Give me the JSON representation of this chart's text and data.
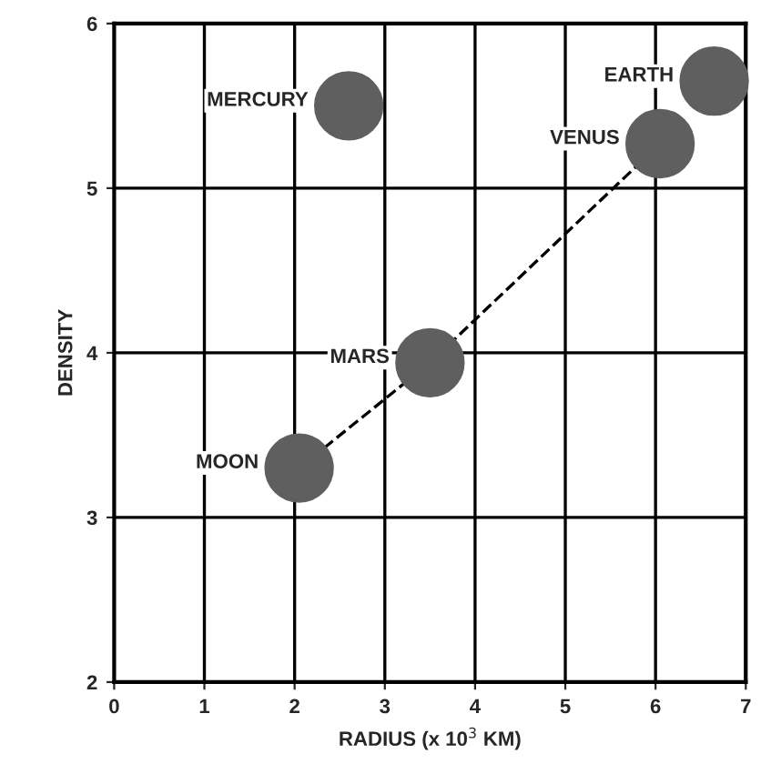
{
  "chart_data": {
    "type": "scatter",
    "xlabel": "RADIUS (x 10$^{3}$ KM)",
    "ylabel": "DENSITY",
    "xlim": [
      0,
      7
    ],
    "ylim": [
      2,
      6
    ],
    "xticks": [
      0,
      1,
      2,
      3,
      4,
      5,
      6,
      7
    ],
    "yticks": [
      2,
      3,
      4,
      5,
      6
    ],
    "grid": true,
    "series": [
      {
        "type": "scatter",
        "marker": "circle",
        "color": "#5f5f5f",
        "x": [
          2.6,
          6.65,
          6.05,
          3.5,
          2.05
        ],
        "values": [
          5.5,
          5.65,
          5.27,
          3.94,
          3.3
        ]
      },
      {
        "type": "line",
        "color": "#000000",
        "line_style": "dashed",
        "x": [
          2.05,
          3.5,
          6.05
        ],
        "values": [
          3.3,
          3.94,
          5.27
        ]
      }
    ],
    "annotations": [
      {
        "text": "MERCURY",
        "x": 2.6,
        "y": 5.5
      },
      {
        "text": "EARTH",
        "x": 6.65,
        "y": 5.65
      },
      {
        "text": "VENUS",
        "x": 6.05,
        "y": 5.27
      },
      {
        "text": "MARS",
        "x": 3.5,
        "y": 3.94
      },
      {
        "text": "MOON",
        "x": 2.05,
        "y": 3.3
      }
    ]
  }
}
